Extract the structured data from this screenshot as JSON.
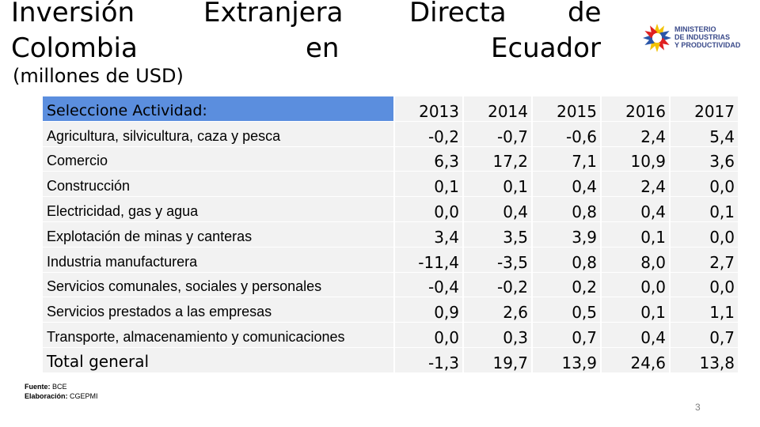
{
  "title": {
    "line1_words": [
      "Inversión",
      "Extranjera",
      "Directa",
      "de"
    ],
    "line2_words": [
      "Colombia",
      "en",
      "Ecuador"
    ],
    "subtitle": "(millones de USD)"
  },
  "logo": {
    "line1": "MINISTERIO",
    "line2": "DE INDUSTRIAS",
    "line3": "Y PRODUCTIVIDAD",
    "colors": [
      "#f2c200",
      "#2a56a8",
      "#e02020"
    ]
  },
  "table": {
    "header_label": "Seleccione Actividad:",
    "header_color": "#5b8ede",
    "years": [
      "2013",
      "2014",
      "2015",
      "2016",
      "2017"
    ],
    "rows": [
      {
        "label": "Agricultura, silvicultura, caza y pesca",
        "values": [
          "-0,2",
          "-0,7",
          "-0,6",
          "2,4",
          "5,4"
        ]
      },
      {
        "label": "Comercio",
        "values": [
          "6,3",
          "17,2",
          "7,1",
          "10,9",
          "3,6"
        ]
      },
      {
        "label": "Construcción",
        "values": [
          "0,1",
          "0,1",
          "0,4",
          "2,4",
          "0,0"
        ]
      },
      {
        "label": "Electricidad, gas y agua",
        "values": [
          "0,0",
          "0,4",
          "0,8",
          "0,4",
          "0,1"
        ]
      },
      {
        "label": "Explotación de minas y canteras",
        "values": [
          "3,4",
          "3,5",
          "3,9",
          "0,1",
          "0,0"
        ]
      },
      {
        "label": "Industria manufacturera",
        "values": [
          "-11,4",
          "-3,5",
          "0,8",
          "8,0",
          "2,7"
        ]
      },
      {
        "label": "Servicios comunales, sociales y personales",
        "values": [
          "-0,4",
          "-0,2",
          "0,2",
          "0,0",
          "0,0"
        ]
      },
      {
        "label": "Servicios prestados a las empresas",
        "values": [
          "0,9",
          "2,6",
          "0,5",
          "0,1",
          "1,1"
        ]
      },
      {
        "label": "Transporte, almacenamiento y comunicaciones",
        "values": [
          "0,0",
          "0,3",
          "0,7",
          "0,4",
          "0,7"
        ]
      }
    ],
    "total": {
      "label": "Total general",
      "values": [
        "-1,3",
        "19,7",
        "13,9",
        "24,6",
        "13,8"
      ]
    }
  },
  "footer": {
    "source_label": "Fuente:",
    "source_value": "BCE",
    "elab_label": "Elaboración:",
    "elab_value": "CGEPMI",
    "page_number": "3"
  }
}
